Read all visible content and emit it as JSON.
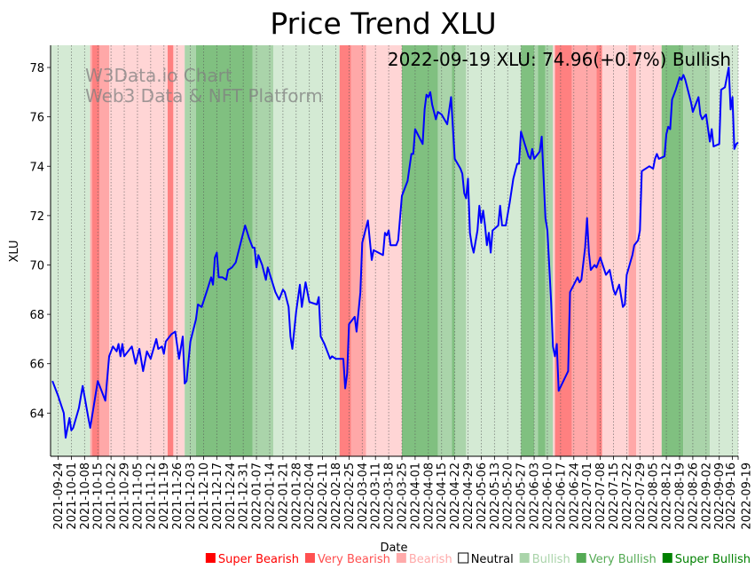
{
  "chart_data": {
    "type": "line",
    "title": "Price Trend XLU",
    "xlabel": "Date",
    "ylabel": "XLU",
    "annotation": "2022-09-19 XLU: 74.96(+0.7%) Bullish",
    "watermark": [
      "W3Data.io Chart",
      "Web3 Data & NFT Platform"
    ],
    "x_start_date": "2021-09-20",
    "x_unit": "days since x_start_date",
    "xlim": [
      0,
      364
    ],
    "ylim": [
      62.25,
      78.9
    ],
    "yticks": [
      64,
      66,
      68,
      70,
      72,
      74,
      76,
      78
    ],
    "xtick_labels": [
      "2021-09-24",
      "2021-10-01",
      "2021-10-08",
      "2021-10-15",
      "2021-10-22",
      "2021-10-29",
      "2021-11-05",
      "2021-11-12",
      "2021-11-19",
      "2021-11-26",
      "2021-12-03",
      "2021-12-10",
      "2021-12-17",
      "2021-12-24",
      "2021-12-31",
      "2022-01-07",
      "2022-01-14",
      "2022-01-21",
      "2022-01-28",
      "2022-02-04",
      "2022-02-11",
      "2022-02-18",
      "2022-02-25",
      "2022-03-04",
      "2022-03-11",
      "2022-03-18",
      "2022-03-25",
      "2022-04-01",
      "2022-04-08",
      "2022-04-15",
      "2022-04-22",
      "2022-04-29",
      "2022-05-06",
      "2022-05-13",
      "2022-05-20",
      "2022-05-27",
      "2022-06-03",
      "2022-06-10",
      "2022-06-17",
      "2022-06-24",
      "2022-07-01",
      "2022-07-08",
      "2022-07-15",
      "2022-07-22",
      "2022-07-29",
      "2022-08-05",
      "2022-08-12",
      "2022-08-19",
      "2022-08-26",
      "2022-09-02",
      "2022-09-09",
      "2022-09-16",
      "2022-09-19"
    ],
    "xtick_days": [
      4,
      11,
      18,
      25,
      32,
      39,
      46,
      53,
      60,
      67,
      74,
      81,
      88,
      95,
      102,
      109,
      116,
      123,
      130,
      137,
      144,
      151,
      158,
      165,
      172,
      179,
      186,
      193,
      200,
      207,
      214,
      221,
      228,
      235,
      242,
      249,
      256,
      263,
      270,
      277,
      284,
      291,
      298,
      305,
      312,
      319,
      326,
      333,
      340,
      347,
      354,
      361,
      364
    ],
    "line_color": "#0000ff",
    "series": [
      {
        "name": "XLU",
        "points": [
          [
            1,
            65.3
          ],
          [
            4,
            64.7
          ],
          [
            7,
            64.0
          ],
          [
            8,
            63.0
          ],
          [
            10,
            63.8
          ],
          [
            11,
            63.3
          ],
          [
            12,
            63.4
          ],
          [
            15,
            64.2
          ],
          [
            17,
            65.1
          ],
          [
            20,
            63.8
          ],
          [
            21,
            63.4
          ],
          [
            25,
            65.3
          ],
          [
            29,
            64.5
          ],
          [
            31,
            66.3
          ],
          [
            33,
            66.7
          ],
          [
            35,
            66.5
          ],
          [
            36,
            66.8
          ],
          [
            37,
            66.3
          ],
          [
            38,
            66.8
          ],
          [
            39,
            66.3
          ],
          [
            43,
            66.7
          ],
          [
            45,
            66.0
          ],
          [
            47,
            66.6
          ],
          [
            49,
            65.7
          ],
          [
            51,
            66.5
          ],
          [
            53,
            66.2
          ],
          [
            56,
            67.0
          ],
          [
            57,
            66.6
          ],
          [
            59,
            66.7
          ],
          [
            60,
            66.4
          ],
          [
            61,
            66.9
          ],
          [
            64,
            67.2
          ],
          [
            66,
            67.3
          ],
          [
            68,
            66.2
          ],
          [
            70,
            67.1
          ],
          [
            71,
            65.2
          ],
          [
            72,
            65.3
          ],
          [
            74,
            66.9
          ],
          [
            77,
            67.8
          ],
          [
            78,
            68.4
          ],
          [
            80,
            68.3
          ],
          [
            83,
            69.0
          ],
          [
            85,
            69.5
          ],
          [
            86,
            69.2
          ],
          [
            87,
            70.3
          ],
          [
            88,
            70.5
          ],
          [
            89,
            69.5
          ],
          [
            91,
            69.5
          ],
          [
            93,
            69.4
          ],
          [
            94,
            69.8
          ],
          [
            96,
            69.9
          ],
          [
            98,
            70.1
          ],
          [
            101,
            71.0
          ],
          [
            103,
            71.6
          ],
          [
            105,
            71.1
          ],
          [
            107,
            70.7
          ],
          [
            108,
            70.7
          ],
          [
            109,
            69.9
          ],
          [
            110,
            70.4
          ],
          [
            112,
            70.0
          ],
          [
            114,
            69.4
          ],
          [
            115,
            69.9
          ],
          [
            117,
            69.4
          ],
          [
            119,
            68.9
          ],
          [
            121,
            68.6
          ],
          [
            123,
            69.0
          ],
          [
            124,
            68.9
          ],
          [
            126,
            68.3
          ],
          [
            127,
            67.1
          ],
          [
            128,
            66.6
          ],
          [
            130,
            68.1
          ],
          [
            132,
            69.2
          ],
          [
            133,
            68.3
          ],
          [
            135,
            69.3
          ],
          [
            137,
            68.5
          ],
          [
            141,
            68.4
          ],
          [
            142,
            68.7
          ],
          [
            143,
            67.1
          ],
          [
            145,
            66.8
          ],
          [
            148,
            66.2
          ],
          [
            149,
            66.3
          ],
          [
            151,
            66.2
          ],
          [
            155,
            66.2
          ],
          [
            156,
            65.0
          ],
          [
            157,
            65.6
          ],
          [
            158,
            67.6
          ],
          [
            161,
            67.9
          ],
          [
            162,
            67.3
          ],
          [
            164,
            68.9
          ],
          [
            165,
            70.9
          ],
          [
            168,
            71.8
          ],
          [
            170,
            70.2
          ],
          [
            171,
            70.6
          ],
          [
            176,
            70.4
          ],
          [
            177,
            71.3
          ],
          [
            178,
            71.2
          ],
          [
            179,
            71.4
          ],
          [
            180,
            70.8
          ],
          [
            183,
            70.8
          ],
          [
            184,
            71.0
          ],
          [
            186,
            72.8
          ],
          [
            189,
            73.4
          ],
          [
            191,
            74.5
          ],
          [
            192,
            74.5
          ],
          [
            193,
            75.5
          ],
          [
            197,
            74.9
          ],
          [
            198,
            76.3
          ],
          [
            199,
            76.9
          ],
          [
            200,
            76.8
          ],
          [
            201,
            77.0
          ],
          [
            202,
            76.5
          ],
          [
            204,
            75.9
          ],
          [
            205,
            76.2
          ],
          [
            207,
            76.1
          ],
          [
            210,
            75.7
          ],
          [
            212,
            76.8
          ],
          [
            214,
            74.3
          ],
          [
            217,
            73.9
          ],
          [
            218,
            73.7
          ],
          [
            219,
            72.9
          ],
          [
            220,
            72.7
          ],
          [
            221,
            73.5
          ],
          [
            222,
            71.3
          ],
          [
            223,
            70.8
          ],
          [
            224,
            70.5
          ],
          [
            226,
            71.4
          ],
          [
            227,
            72.4
          ],
          [
            228,
            71.7
          ],
          [
            229,
            72.2
          ],
          [
            230,
            71.6
          ],
          [
            231,
            70.8
          ],
          [
            232,
            71.3
          ],
          [
            233,
            70.5
          ],
          [
            234,
            71.4
          ],
          [
            237,
            71.6
          ],
          [
            238,
            72.4
          ],
          [
            239,
            71.6
          ],
          [
            241,
            71.6
          ],
          [
            243,
            72.5
          ],
          [
            245,
            73.5
          ],
          [
            247,
            74.1
          ],
          [
            248,
            74.1
          ],
          [
            249,
            75.4
          ],
          [
            253,
            74.4
          ],
          [
            254,
            74.3
          ],
          [
            255,
            74.7
          ],
          [
            256,
            74.3
          ],
          [
            259,
            74.6
          ],
          [
            260,
            75.2
          ],
          [
            262,
            71.9
          ],
          [
            263,
            71.4
          ],
          [
            265,
            68.5
          ],
          [
            266,
            66.7
          ],
          [
            267,
            66.3
          ],
          [
            268,
            66.8
          ],
          [
            269,
            64.9
          ],
          [
            274,
            65.7
          ],
          [
            275,
            68.9
          ],
          [
            277,
            69.2
          ],
          [
            279,
            69.5
          ],
          [
            280,
            69.3
          ],
          [
            281,
            69.4
          ],
          [
            283,
            70.7
          ],
          [
            284,
            71.9
          ],
          [
            285,
            70.5
          ],
          [
            286,
            69.8
          ],
          [
            288,
            70.0
          ],
          [
            289,
            69.9
          ],
          [
            291,
            70.3
          ],
          [
            294,
            69.6
          ],
          [
            296,
            69.8
          ],
          [
            298,
            69.0
          ],
          [
            299,
            68.8
          ],
          [
            301,
            69.2
          ],
          [
            303,
            68.3
          ],
          [
            304,
            68.4
          ],
          [
            305,
            69.6
          ],
          [
            308,
            70.4
          ],
          [
            309,
            70.8
          ],
          [
            311,
            71.0
          ],
          [
            312,
            71.4
          ],
          [
            313,
            73.8
          ],
          [
            317,
            74.0
          ],
          [
            319,
            73.9
          ],
          [
            320,
            74.3
          ],
          [
            321,
            74.5
          ],
          [
            322,
            74.3
          ],
          [
            325,
            74.4
          ],
          [
            326,
            75.3
          ],
          [
            327,
            75.6
          ],
          [
            328,
            75.5
          ],
          [
            329,
            76.7
          ],
          [
            331,
            77.1
          ],
          [
            333,
            77.6
          ],
          [
            334,
            77.5
          ],
          [
            335,
            77.7
          ],
          [
            336,
            77.5
          ],
          [
            339,
            76.6
          ],
          [
            340,
            76.2
          ],
          [
            341,
            76.4
          ],
          [
            343,
            76.8
          ],
          [
            344,
            76.1
          ],
          [
            345,
            75.9
          ],
          [
            347,
            76.1
          ],
          [
            349,
            75.0
          ],
          [
            350,
            75.5
          ],
          [
            351,
            74.8
          ],
          [
            354,
            74.9
          ],
          [
            355,
            77.1
          ],
          [
            357,
            77.2
          ],
          [
            359,
            78.0
          ],
          [
            360,
            76.3
          ],
          [
            361,
            76.8
          ],
          [
            362,
            74.7
          ],
          [
            363,
            74.9
          ],
          [
            364,
            74.96
          ]
        ]
      }
    ],
    "sentiment_bands": [
      [
        0,
        21,
        "Bullish"
      ],
      [
        21,
        22,
        "Very Bearish"
      ],
      [
        22,
        26,
        "Super Bearish"
      ],
      [
        26,
        31,
        "Very Bearish"
      ],
      [
        31,
        62,
        "Bearish"
      ],
      [
        62,
        65,
        "Super Bearish"
      ],
      [
        65,
        71,
        "Bearish"
      ],
      [
        71,
        77,
        "Very Bullish"
      ],
      [
        77,
        107,
        "Super Bullish"
      ],
      [
        107,
        118,
        "Very Bullish"
      ],
      [
        118,
        153,
        "Bullish"
      ],
      [
        153,
        159,
        "Super Bearish"
      ],
      [
        159,
        167,
        "Very Bearish"
      ],
      [
        167,
        186,
        "Bearish"
      ],
      [
        186,
        205,
        "Super Bullish"
      ],
      [
        205,
        212.5,
        "Very Bullish"
      ],
      [
        212.5,
        214,
        "Super Bullish"
      ],
      [
        214,
        220,
        "Very Bullish"
      ],
      [
        220,
        249,
        "Bullish"
      ],
      [
        249,
        256,
        "Super Bullish"
      ],
      [
        256,
        258,
        "Very Bullish"
      ],
      [
        258,
        262,
        "Super Bullish"
      ],
      [
        262,
        266,
        "Very Bullish"
      ],
      [
        266,
        267,
        "Bearish"
      ],
      [
        267,
        276,
        "Super Bearish"
      ],
      [
        276,
        289,
        "Very Bearish"
      ],
      [
        289,
        292,
        "Super Bearish"
      ],
      [
        292,
        306,
        "Bearish"
      ],
      [
        306,
        310,
        "Very Bearish"
      ],
      [
        310,
        323.5,
        "Bearish"
      ],
      [
        323.5,
        335,
        "Super Bullish"
      ],
      [
        335,
        349,
        "Very Bullish"
      ],
      [
        349,
        364,
        "Bullish"
      ]
    ],
    "legend": [
      {
        "label": "Super Bearish",
        "color": "#ff0000",
        "band": "#ff8080",
        "filled": true
      },
      {
        "label": "Very Bearish",
        "color": "#ff5050",
        "band": "#ffa8a8",
        "filled": true
      },
      {
        "label": "Bearish",
        "color": "#ffaaaa",
        "band": "#ffd5d5",
        "filled": true
      },
      {
        "label": "Neutral",
        "color": "#000000",
        "band": "#ffffff",
        "filled": false
      },
      {
        "label": "Bullish",
        "color": "#aad4aa",
        "band": "#d4ead4",
        "filled": true
      },
      {
        "label": "Very Bullish",
        "color": "#55aa55",
        "band": "#aad4aa",
        "filled": true
      },
      {
        "label": "Super Bullish",
        "color": "#008000",
        "band": "#80c080",
        "filled": true
      }
    ],
    "legend_placement": "bottom-right",
    "grid": "vertical dotted"
  }
}
